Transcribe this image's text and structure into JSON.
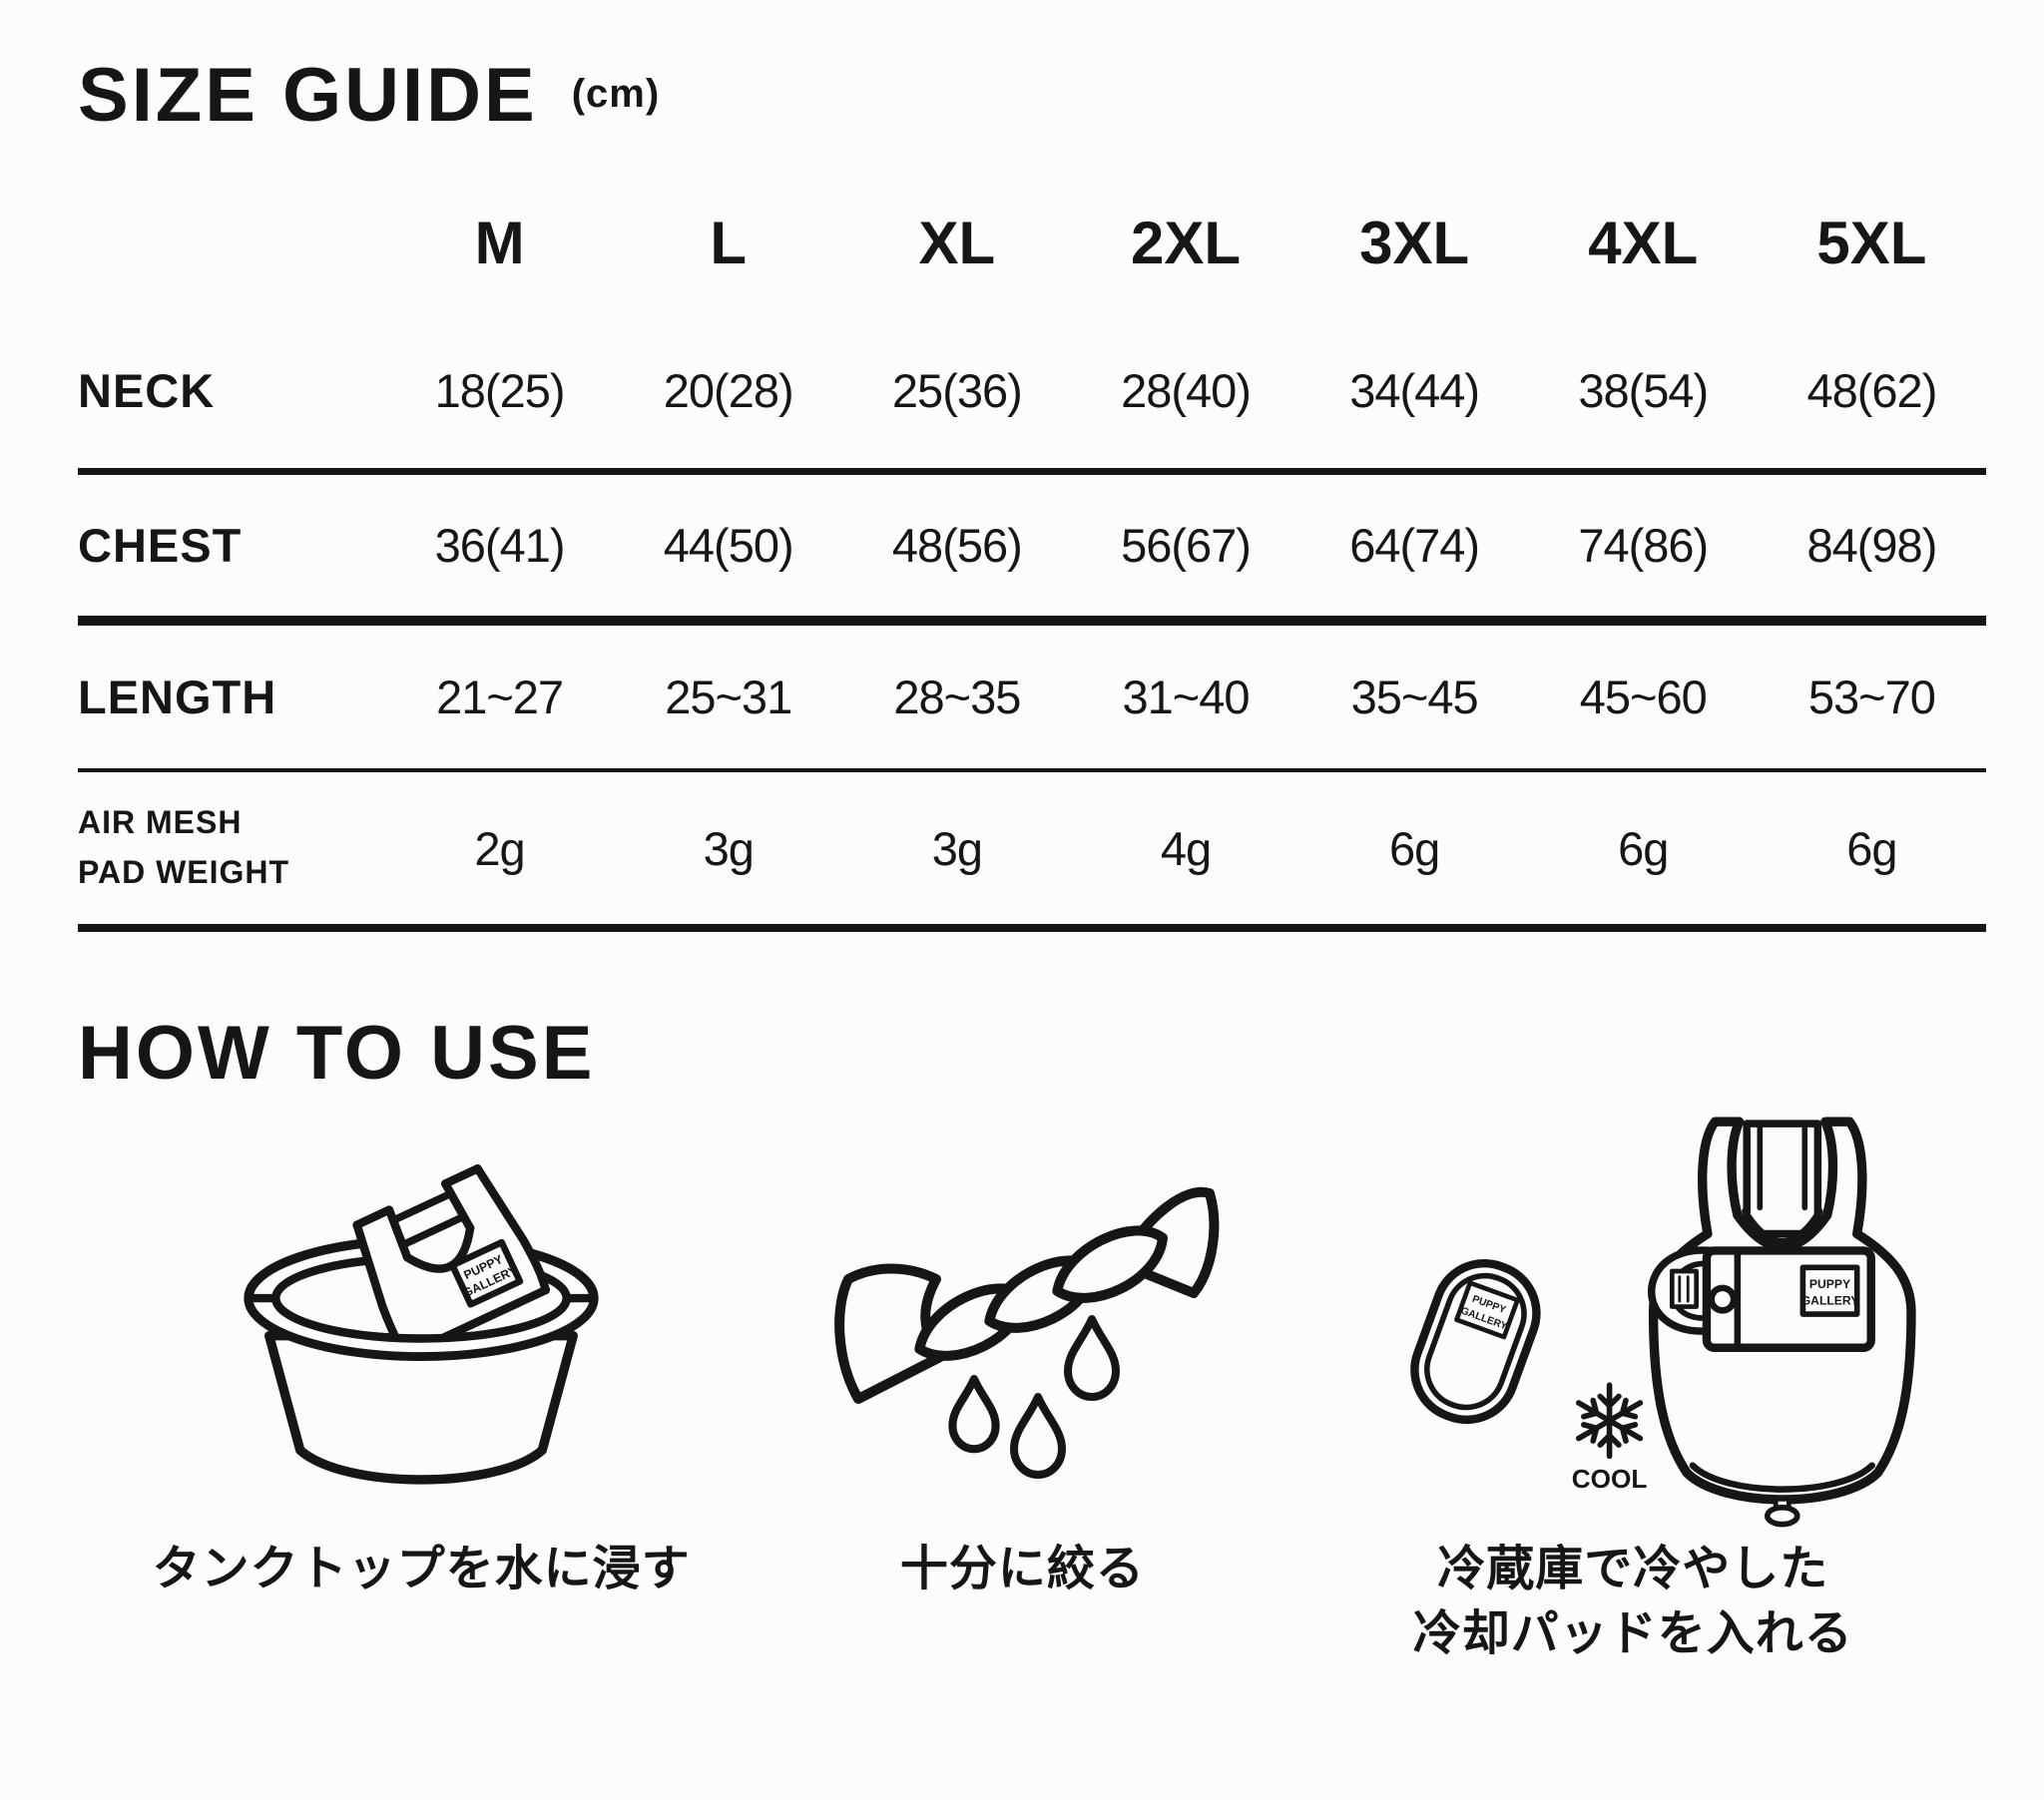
{
  "size_guide": {
    "title": "SIZE GUIDE",
    "unit": "(cm)",
    "columns": [
      "M",
      "L",
      "XL",
      "2XL",
      "3XL",
      "4XL",
      "5XL"
    ],
    "rows": [
      {
        "label": "NECK",
        "small": false,
        "values": [
          "18(25)",
          "20(28)",
          "25(36)",
          "28(40)",
          "34(44)",
          "38(54)",
          "48(62)"
        ]
      },
      {
        "label": "CHEST",
        "small": false,
        "values": [
          "36(41)",
          "44(50)",
          "48(56)",
          "56(67)",
          "64(74)",
          "74(86)",
          "84(98)"
        ]
      },
      {
        "label": "LENGTH",
        "small": false,
        "values": [
          "21~27",
          "25~31",
          "28~35",
          "31~40",
          "35~45",
          "45~60",
          "53~70"
        ]
      },
      {
        "label": "AIR MESH\nPAD WEIGHT",
        "small": true,
        "values": [
          "2g",
          "3g",
          "3g",
          "4g",
          "6g",
          "6g",
          "6g"
        ]
      }
    ]
  },
  "how_to_use": {
    "title": "HOW TO USE",
    "steps": [
      {
        "icon": "bucket-soak-icon",
        "caption": "タンクトップを水に浸す"
      },
      {
        "icon": "wring-out-icon",
        "caption": "十分に絞る"
      },
      {
        "icon": "cooling-pad-insert-icon",
        "caption_line1": "冷蔵庫で冷やした",
        "caption_line2": "冷却パッドを入れる"
      }
    ],
    "tag_line1": "PUPPY",
    "tag_line2": "GALLERY",
    "cool_label": "COOL"
  }
}
